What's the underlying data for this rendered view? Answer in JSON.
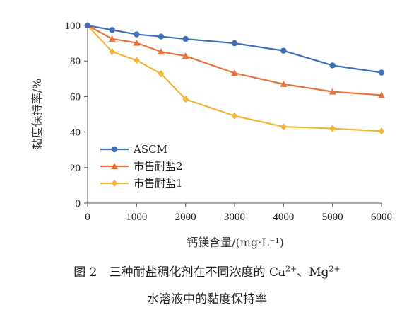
{
  "chart_data": {
    "type": "line",
    "x": [
      0,
      500,
      1000,
      1500,
      2000,
      3000,
      4000,
      5000,
      6000
    ],
    "series": [
      {
        "name": "ASCM",
        "color": "#3f6fb6",
        "marker": "circle",
        "values": [
          100,
          97.5,
          95,
          93.8,
          92.4,
          90,
          85.8,
          77.5,
          73.5
        ]
      },
      {
        "name": "市售耐盐2",
        "color": "#e8733a",
        "marker": "triangle",
        "values": [
          100,
          92.5,
          90.2,
          85.2,
          82.8,
          73.2,
          67,
          62.7,
          60.8
        ]
      },
      {
        "name": "市售耐盐1",
        "color": "#f2b53c",
        "marker": "diamond",
        "values": [
          100,
          85.2,
          80.4,
          72.8,
          58.5,
          49.1,
          43,
          42,
          40.5
        ]
      }
    ],
    "xlabel": "钙镁含量/(mg·L⁻¹)",
    "ylabel": "黏度保持率/%",
    "xlim": [
      0,
      6000
    ],
    "ylim": [
      0,
      100
    ],
    "xticks": [
      0,
      1000,
      2000,
      3000,
      4000,
      5000,
      6000
    ],
    "yticks": [
      0,
      20,
      40,
      60,
      80,
      100
    ],
    "grid": false,
    "legend": "bottom-left"
  },
  "caption": {
    "line1_prefix": "图 2　三种耐盐稠化剂在不同浓度的 Ca",
    "line1_sup1": "2+",
    "line1_mid": "、Mg",
    "line1_sup2": "2+",
    "line2": "水溶液中的黏度保持率"
  }
}
